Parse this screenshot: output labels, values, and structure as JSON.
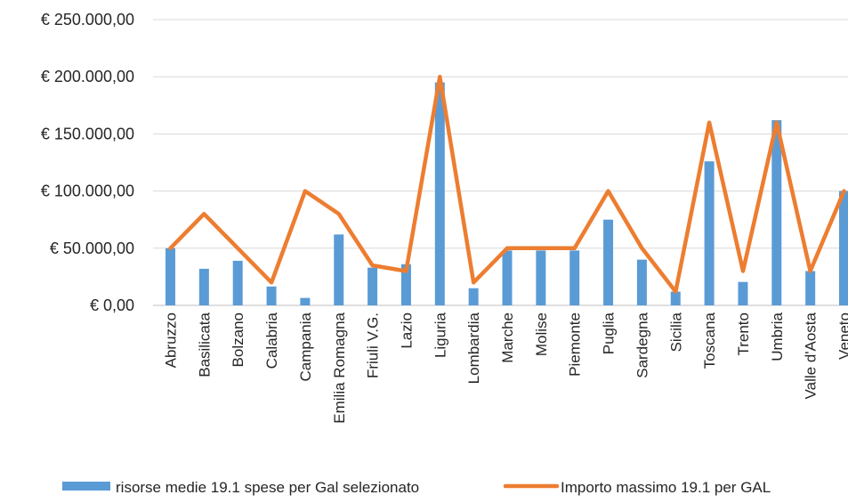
{
  "chart_data": {
    "type": "bar",
    "categories": [
      "Abruzzo",
      "Basilicata",
      "Bolzano",
      "Calabria",
      "Campania",
      "Emilia Romagna",
      "Friuli V.G.",
      "Lazio",
      "Liguria",
      "Lombardia",
      "Marche",
      "Molise",
      "Piemonte",
      "Puglia",
      "Sardegna",
      "Sicilia",
      "Toscana",
      "Trento",
      "Umbria",
      "Valle d'Aosta",
      "Veneto"
    ],
    "series": [
      {
        "name": "risorse medie 19.1 spese per Gal selezionato",
        "type": "bar",
        "color": "#5B9BD5",
        "values": [
          50000,
          32000,
          39000,
          16500,
          6500,
          62000,
          33000,
          36000,
          195000,
          15000,
          48000,
          48000,
          48000,
          75000,
          40000,
          12000,
          126000,
          20500,
          162000,
          30000,
          100000
        ]
      },
      {
        "name": "Importo massimo 19.1  per GAL",
        "type": "line",
        "color": "#ED7D31",
        "values": [
          50000,
          80000,
          50000,
          20000,
          100000,
          80000,
          35000,
          30000,
          200000,
          20000,
          50000,
          50000,
          50000,
          100000,
          50000,
          12000,
          160000,
          30000,
          160000,
          30000,
          100000
        ]
      }
    ],
    "y_ticks": [
      "€ 0,00",
      "€ 50.000,00",
      "€ 100.000,00",
      "€ 150.000,00",
      "€ 200.000,00",
      "€ 250.000,00"
    ],
    "ylim": [
      0,
      250000
    ],
    "grid": true,
    "legend": "bottom"
  }
}
